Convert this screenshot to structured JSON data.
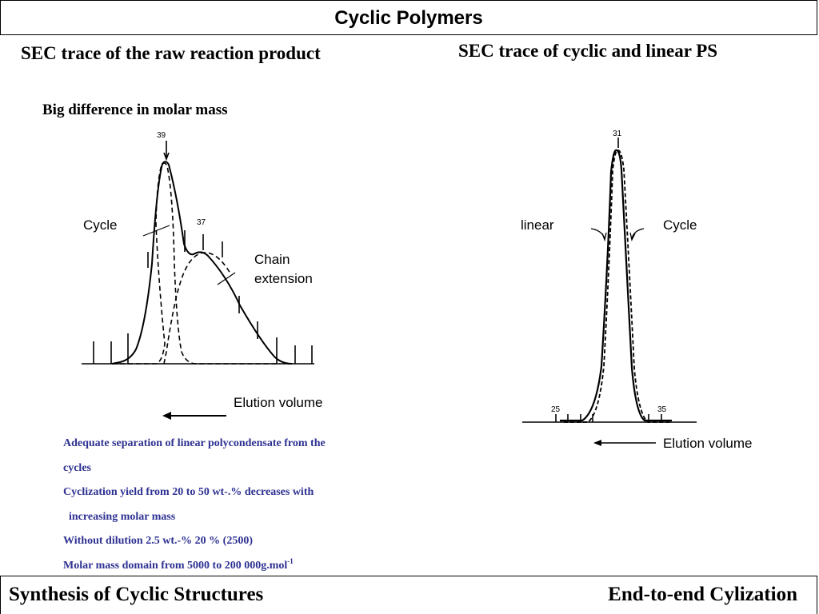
{
  "title": "Cyclic Polymers",
  "left_panel": {
    "heading": "SEC trace of the raw reaction product",
    "subheading": "Big difference in molar mass",
    "label_cycle": "Cycle",
    "label_chain_1": "Chain",
    "label_chain_2": "extension",
    "axis_label": "Elution volume"
  },
  "right_panel": {
    "heading": "SEC trace of cyclic and linear PS",
    "label_linear": "linear",
    "label_cycle": "Cycle",
    "axis_label": "Elution volume"
  },
  "notes": {
    "line1": "Adequate separation of linear polycondensate from the",
    "line2": "cycles",
    "line3": "Cyclization yield from 20 to 50 wt-.% decreases with",
    "line4": " increasing molar mass",
    "line5": "Without dilution 2.5 wt.-% 20 % (2500)",
    "line6": "Molar mass domain from 5000 to 200 000g.mol",
    "line6_sup": "-1"
  },
  "footer": {
    "left": "Synthesis of Cyclic Structures",
    "right": "End-to-end Cylization"
  },
  "colors": {
    "notes_text": "#2e3192"
  },
  "chart_data": [
    {
      "type": "line",
      "title": "SEC trace of the raw reaction product",
      "subtitle": "Big difference in molar mass",
      "xlabel": "Elution volume",
      "ylabel": "",
      "peak_labels": [
        "39",
        "37"
      ],
      "series": [
        {
          "name": "",
          "style": "solid"
        },
        {
          "name": "Cycle",
          "style": "dashed"
        },
        {
          "name": "Chain extension",
          "style": "dashed"
        }
      ]
    },
    {
      "type": "line",
      "title": "SEC trace of cyclic and linear PS",
      "xlabel": "Elution volume",
      "ylabel": "",
      "peak_labels": [
        "31"
      ],
      "tick_labels": [
        "25",
        "35"
      ],
      "series": [
        {
          "name": "linear",
          "style": "solid"
        },
        {
          "name": "Cycle",
          "style": "dashed"
        }
      ]
    }
  ]
}
